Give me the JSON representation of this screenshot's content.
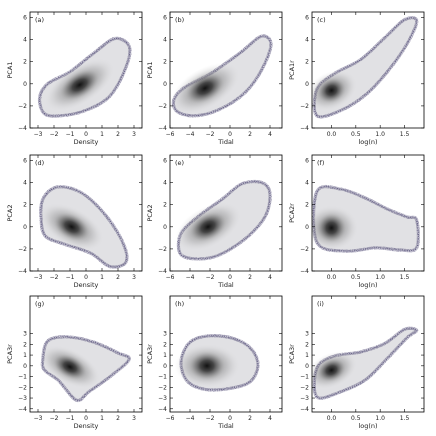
{
  "figure": {
    "colors": {
      "outline": "#4a4470",
      "inner": "#c9c8ce",
      "core": "#151515",
      "frame": "#000000"
    }
  },
  "chart_data": [
    {
      "type": "scatter",
      "panel": "(a)",
      "xlabel": "Density",
      "ylabel": "PCA1",
      "xlim": [
        -3.5,
        3.5
      ],
      "ylim": [
        -4,
        6.5
      ],
      "xticks": [
        "-3",
        "-2",
        "-1",
        "0",
        "1",
        "2",
        "3"
      ],
      "yticks": [
        "-4",
        "-2",
        "0",
        "2",
        "4",
        "6"
      ],
      "density_region": {
        "center": [
          -0.4,
          -0.1
        ],
        "spread": [
          0.9,
          0.75
        ],
        "corr": 0.72
      },
      "outline": [
        [
          -2.6,
          -2.7
        ],
        [
          -1.6,
          -2.9
        ],
        [
          0,
          -2.4
        ],
        [
          1.5,
          -1.1
        ],
        [
          2.5,
          1.5
        ],
        [
          2.7,
          3.4
        ],
        [
          1.8,
          4.1
        ],
        [
          0.5,
          2.8
        ],
        [
          -1,
          1.1
        ],
        [
          -2.4,
          0
        ],
        [
          -2.9,
          -1.3
        ]
      ]
    },
    {
      "type": "scatter",
      "panel": "(b)",
      "xlabel": "Tidal",
      "ylabel": "PCA1",
      "xlim": [
        -6,
        5.2
      ],
      "ylim": [
        -4,
        6.5
      ],
      "xticks": [
        "-6",
        "-4",
        "-2",
        "0",
        "2",
        "4"
      ],
      "yticks": [
        "-4",
        "-2",
        "0",
        "2",
        "4",
        "6"
      ],
      "density_region": {
        "center": [
          -2.5,
          -0.4
        ],
        "spread": [
          1.4,
          0.8
        ],
        "corr": 0.65
      },
      "outline": [
        [
          -5.3,
          -2.5
        ],
        [
          -3.5,
          -2.9
        ],
        [
          -1,
          -2.3
        ],
        [
          1.5,
          -0.8
        ],
        [
          3.2,
          1.3
        ],
        [
          4.1,
          3.6
        ],
        [
          3.1,
          4.3
        ],
        [
          1,
          2.8
        ],
        [
          -2,
          0.9
        ],
        [
          -4.5,
          -0.3
        ],
        [
          -5.6,
          -1.4
        ]
      ]
    },
    {
      "type": "scatter",
      "panel": "(c)",
      "xlabel": "log(n)",
      "ylabel": "PCA1r",
      "xlim": [
        -0.4,
        1.9
      ],
      "ylim": [
        -4,
        6.5
      ],
      "xticks": [
        "0.0",
        "0.5",
        "1.0",
        "1.5"
      ],
      "yticks": [
        "-4",
        "-2",
        "0",
        "2",
        "4",
        "6"
      ],
      "density_region": {
        "center": [
          0.0,
          -0.6
        ],
        "spread": [
          0.2,
          0.75
        ],
        "corr": 0.55
      },
      "outline": [
        [
          -0.3,
          -2.9
        ],
        [
          0.2,
          -2.4
        ],
        [
          0.7,
          -1
        ],
        [
          1.15,
          1.1
        ],
        [
          1.55,
          3.6
        ],
        [
          1.75,
          5.7
        ],
        [
          1.5,
          5.8
        ],
        [
          1.1,
          4.2
        ],
        [
          0.6,
          2.2
        ],
        [
          0.05,
          0.9
        ],
        [
          -0.3,
          -0.5
        ]
      ]
    },
    {
      "type": "scatter",
      "panel": "(d)",
      "xlabel": "Density",
      "ylabel": "PCA2",
      "xlim": [
        -3.5,
        3.5
      ],
      "ylim": [
        -4,
        6.5
      ],
      "xticks": [
        "-3",
        "-2",
        "-1",
        "0",
        "1",
        "2",
        "3"
      ],
      "yticks": [
        "-4",
        "-2",
        "0",
        "2",
        "4",
        "6"
      ],
      "density_region": {
        "center": [
          -0.9,
          0.0
        ],
        "spread": [
          0.8,
          0.75
        ],
        "corr": -0.62
      },
      "outline": [
        [
          -2.8,
          0.5
        ],
        [
          -2.7,
          2.5
        ],
        [
          -1.8,
          3.6
        ],
        [
          -0.3,
          3.1
        ],
        [
          1.2,
          1.1
        ],
        [
          2.3,
          -1.4
        ],
        [
          2.5,
          -3.2
        ],
        [
          1.5,
          -3.6
        ],
        [
          0.3,
          -2.4
        ],
        [
          -1.3,
          -1.6
        ],
        [
          -2.5,
          -0.9
        ]
      ]
    },
    {
      "type": "scatter",
      "panel": "(e)",
      "xlabel": "Tidal",
      "ylabel": "PCA2",
      "xlim": [
        -6,
        5.2
      ],
      "ylim": [
        -4,
        6.5
      ],
      "xticks": [
        "-6",
        "-4",
        "-2",
        "0",
        "2",
        "4"
      ],
      "yticks": [
        "-4",
        "-2",
        "0",
        "2",
        "4",
        "6"
      ],
      "density_region": {
        "center": [
          -2.2,
          0.0
        ],
        "spread": [
          1.3,
          0.8
        ],
        "corr": 0.6
      },
      "outline": [
        [
          -5,
          -2.4
        ],
        [
          -3.5,
          -2.9
        ],
        [
          -1.2,
          -2.6
        ],
        [
          1.5,
          -1.1
        ],
        [
          3.5,
          0.9
        ],
        [
          4,
          3
        ],
        [
          3.2,
          4
        ],
        [
          1.2,
          3.9
        ],
        [
          -0.8,
          2.5
        ],
        [
          -3.1,
          1
        ],
        [
          -4.9,
          -0.6
        ]
      ]
    },
    {
      "type": "scatter",
      "panel": "(f)",
      "xlabel": "log(n)",
      "ylabel": "PCA2r",
      "xlim": [
        -0.4,
        1.9
      ],
      "ylim": [
        -4,
        6.5
      ],
      "xticks": [
        "0.0",
        "0.5",
        "1.0",
        "1.5"
      ],
      "yticks": [
        "-4",
        "-2",
        "0",
        "2",
        "4",
        "6"
      ],
      "density_region": {
        "center": [
          0.0,
          -0.1
        ],
        "spread": [
          0.2,
          0.9
        ],
        "corr": 0.0
      },
      "outline": [
        [
          -0.3,
          3.2
        ],
        [
          0.2,
          3.4
        ],
        [
          0.7,
          2.6
        ],
        [
          1.15,
          1.6
        ],
        [
          1.55,
          0.9
        ],
        [
          1.75,
          0.6
        ],
        [
          1.75,
          -1.9
        ],
        [
          1.4,
          -2.1
        ],
        [
          0.9,
          -1.9
        ],
        [
          0.3,
          -2.2
        ],
        [
          -0.3,
          -1.4
        ]
      ]
    },
    {
      "type": "scatter",
      "panel": "(g)",
      "xlabel": "Density",
      "ylabel": "PCA3r",
      "xlim": [
        -3.5,
        3.5
      ],
      "ylim": [
        -4.3,
        6.5
      ],
      "xticks": [
        "-3",
        "-2",
        "-1",
        "0",
        "1",
        "2",
        "3"
      ],
      "yticks": [
        "-4",
        "-3",
        "-2",
        "-1",
        "0",
        "1",
        "2",
        "3"
      ],
      "density_region": {
        "center": [
          -1.0,
          -0.1
        ],
        "spread": [
          0.75,
          0.7
        ],
        "corr": -0.6
      },
      "outline": [
        [
          -2.7,
          0.6
        ],
        [
          -2.4,
          2.3
        ],
        [
          -1.2,
          2.7
        ],
        [
          0.5,
          2.2
        ],
        [
          2,
          1.2
        ],
        [
          2.7,
          0.6
        ],
        [
          1.6,
          -0.9
        ],
        [
          0.2,
          -2.4
        ],
        [
          -0.6,
          -3.2
        ],
        [
          -1.7,
          -1.4
        ],
        [
          -2.6,
          -0.4
        ]
      ]
    },
    {
      "type": "scatter",
      "panel": "(h)",
      "xlabel": "Tidal",
      "ylabel": "PCA3r",
      "xlim": [
        -6,
        5.2
      ],
      "ylim": [
        -4.3,
        6.5
      ],
      "xticks": [
        "-6",
        "-4",
        "-2",
        "0",
        "2",
        "4"
      ],
      "yticks": [
        "-4",
        "-3",
        "-2",
        "-1",
        "0",
        "1",
        "2",
        "3"
      ],
      "density_region": {
        "center": [
          -2.3,
          0.0
        ],
        "spread": [
          1.2,
          0.9
        ],
        "corr": 0.0
      },
      "outline": [
        [
          -4.9,
          0.4
        ],
        [
          -4,
          2.2
        ],
        [
          -2,
          2.8
        ],
        [
          0.5,
          2.5
        ],
        [
          2.2,
          1.5
        ],
        [
          2.8,
          0
        ],
        [
          2,
          -1.5
        ],
        [
          0,
          -2.1
        ],
        [
          -2.5,
          -2.2
        ],
        [
          -4.3,
          -1.4
        ]
      ]
    },
    {
      "type": "scatter",
      "panel": "(i)",
      "xlabel": "log(n)",
      "ylabel": "PCA3r",
      "xlim": [
        -0.4,
        1.9
      ],
      "ylim": [
        -4.3,
        6.5
      ],
      "xticks": [
        "0.0",
        "0.5",
        "1.0",
        "1.5"
      ],
      "yticks": [
        "-4",
        "-3",
        "-2",
        "-1",
        "0",
        "1",
        "2",
        "3"
      ],
      "density_region": {
        "center": [
          0.0,
          -0.4
        ],
        "spread": [
          0.2,
          0.7
        ],
        "corr": 0.5
      },
      "outline": [
        [
          -0.3,
          -2.9
        ],
        [
          0.2,
          -2.4
        ],
        [
          0.7,
          -1.3
        ],
        [
          1.15,
          0.7
        ],
        [
          1.55,
          2.6
        ],
        [
          1.75,
          3.3
        ],
        [
          1.5,
          3.4
        ],
        [
          1.1,
          2.1
        ],
        [
          0.6,
          1.3
        ],
        [
          0.05,
          0.9
        ],
        [
          -0.3,
          -0.2
        ]
      ]
    }
  ]
}
